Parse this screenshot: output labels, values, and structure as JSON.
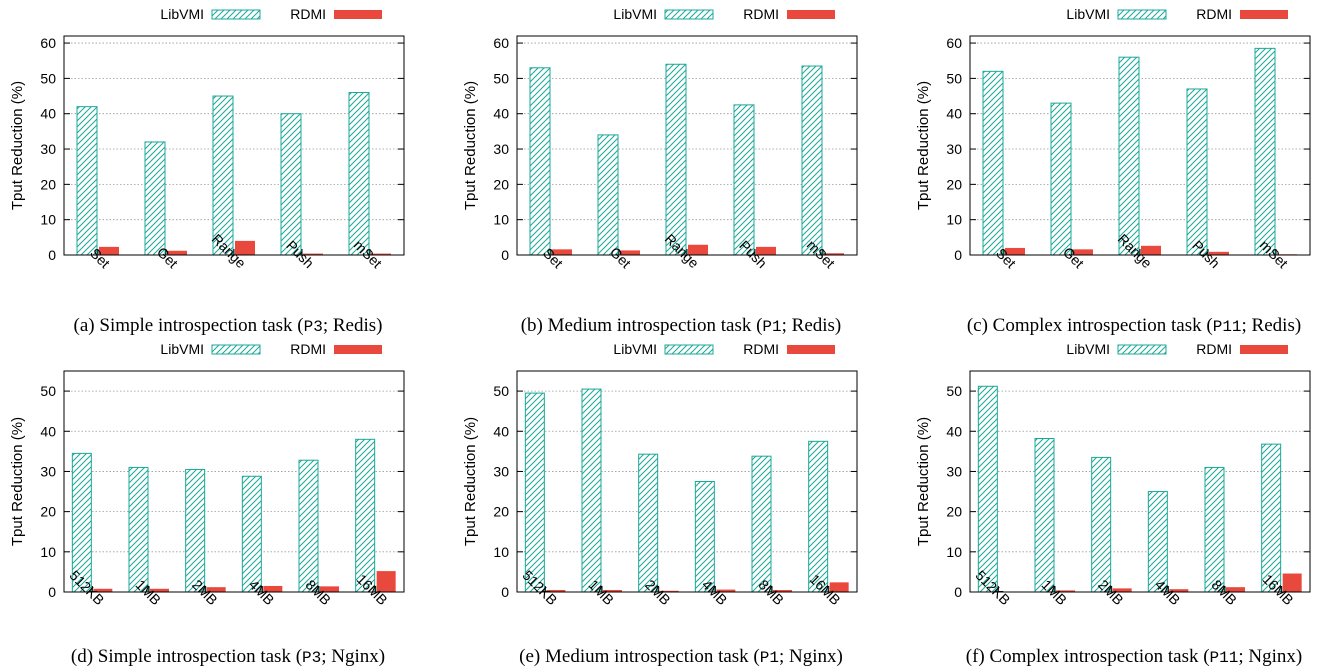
{
  "colors": {
    "libvmi": "#1aa898",
    "rdmi": "#e8493c",
    "grid": "#999999",
    "axis": "#000000"
  },
  "chart_data": [
    {
      "type": "bar",
      "legend": [
        "LibVMI",
        "RDMI"
      ],
      "legend_placement": "top",
      "ylabel": "Tput Reduction (%)",
      "ylim": [
        0,
        62
      ],
      "yticks": [
        0,
        10,
        20,
        30,
        40,
        50,
        60
      ],
      "grid": true,
      "categories": [
        "Set",
        "Get",
        "Range",
        "Push",
        "mSet"
      ],
      "series": [
        {
          "name": "LibVMI",
          "pattern": "hatched",
          "values": [
            42,
            32,
            45,
            40,
            46
          ]
        },
        {
          "name": "RDMI",
          "pattern": "solid",
          "values": [
            2.3,
            1.2,
            4.0,
            0.4,
            0.4
          ]
        }
      ],
      "caption_prefix": "(a) Simple introspection task (",
      "caption_code": "P3",
      "caption_suffix": "; Redis)"
    },
    {
      "type": "bar",
      "legend": [
        "LibVMI",
        "RDMI"
      ],
      "legend_placement": "top",
      "ylabel": "Tput Reduction (%)",
      "ylim": [
        0,
        62
      ],
      "yticks": [
        0,
        10,
        20,
        30,
        40,
        50,
        60
      ],
      "grid": true,
      "categories": [
        "Set",
        "Get",
        "Range",
        "Push",
        "mSet"
      ],
      "series": [
        {
          "name": "LibVMI",
          "pattern": "hatched",
          "values": [
            53,
            34,
            54,
            42.5,
            53.5
          ]
        },
        {
          "name": "RDMI",
          "pattern": "solid",
          "values": [
            1.6,
            1.3,
            2.9,
            2.3,
            0.5
          ]
        }
      ],
      "caption_prefix": "(b) Medium introspection task (",
      "caption_code": "P1",
      "caption_suffix": "; Redis)"
    },
    {
      "type": "bar",
      "legend": [
        "LibVMI",
        "RDMI"
      ],
      "legend_placement": "top",
      "ylabel": "Tput Reduction (%)",
      "ylim": [
        0,
        62
      ],
      "yticks": [
        0,
        10,
        20,
        30,
        40,
        50,
        60
      ],
      "grid": true,
      "categories": [
        "Set",
        "Get",
        "Range",
        "Push",
        "mSet"
      ],
      "series": [
        {
          "name": "LibVMI",
          "pattern": "hatched",
          "values": [
            52,
            43,
            56,
            47,
            58.5
          ]
        },
        {
          "name": "RDMI",
          "pattern": "solid",
          "values": [
            2.0,
            1.6,
            2.6,
            0.9,
            0.2
          ]
        }
      ],
      "caption_prefix": "(c) Complex introspection task (",
      "caption_code": "P11",
      "caption_suffix": "; Redis)"
    },
    {
      "type": "bar",
      "legend": [
        "LibVMI",
        "RDMI"
      ],
      "legend_placement": "top",
      "ylabel": "Tput Reduction (%)",
      "ylim": [
        0,
        55
      ],
      "yticks": [
        0,
        10,
        20,
        30,
        40,
        50
      ],
      "grid": true,
      "categories": [
        "512KB",
        "1MB",
        "2MB",
        "4MB",
        "8MB",
        "16MB"
      ],
      "series": [
        {
          "name": "LibVMI",
          "pattern": "hatched",
          "values": [
            34.5,
            31,
            30.5,
            28.8,
            32.8,
            38
          ]
        },
        {
          "name": "RDMI",
          "pattern": "solid",
          "values": [
            0.8,
            0.8,
            1.2,
            1.5,
            1.4,
            5.2
          ]
        }
      ],
      "caption_prefix": "(d) Simple introspection task (",
      "caption_code": "P3",
      "caption_suffix": "; Nginx)"
    },
    {
      "type": "bar",
      "legend": [
        "LibVMI",
        "RDMI"
      ],
      "legend_placement": "top",
      "ylabel": "Tput Reduction (%)",
      "ylim": [
        0,
        55
      ],
      "yticks": [
        0,
        10,
        20,
        30,
        40,
        50
      ],
      "grid": true,
      "categories": [
        "512KB",
        "1MB",
        "2MB",
        "4MB",
        "8MB",
        "16MB"
      ],
      "series": [
        {
          "name": "LibVMI",
          "pattern": "hatched",
          "values": [
            49.5,
            50.5,
            34.3,
            27.5,
            33.8,
            37.5
          ]
        },
        {
          "name": "RDMI",
          "pattern": "solid",
          "values": [
            0.5,
            0.5,
            0.3,
            0.6,
            0.5,
            2.4
          ]
        }
      ],
      "caption_prefix": "(e) Medium introspection task (",
      "caption_code": "P1",
      "caption_suffix": "; Nginx)"
    },
    {
      "type": "bar",
      "legend": [
        "LibVMI",
        "RDMI"
      ],
      "legend_placement": "top",
      "ylabel": "Tput Reduction (%)",
      "ylim": [
        0,
        55
      ],
      "yticks": [
        0,
        10,
        20,
        30,
        40,
        50
      ],
      "grid": true,
      "categories": [
        "512KB",
        "1MB",
        "2MB",
        "4MB",
        "8MB",
        "16MB"
      ],
      "series": [
        {
          "name": "LibVMI",
          "pattern": "hatched",
          "values": [
            51.2,
            38.2,
            33.5,
            25,
            31,
            36.8
          ]
        },
        {
          "name": "RDMI",
          "pattern": "solid",
          "values": [
            0.1,
            0.4,
            0.9,
            0.7,
            1.2,
            4.6
          ]
        }
      ],
      "caption_prefix": "(f) Complex introspection task (",
      "caption_code": "P11",
      "caption_suffix": "; Nginx)"
    }
  ]
}
